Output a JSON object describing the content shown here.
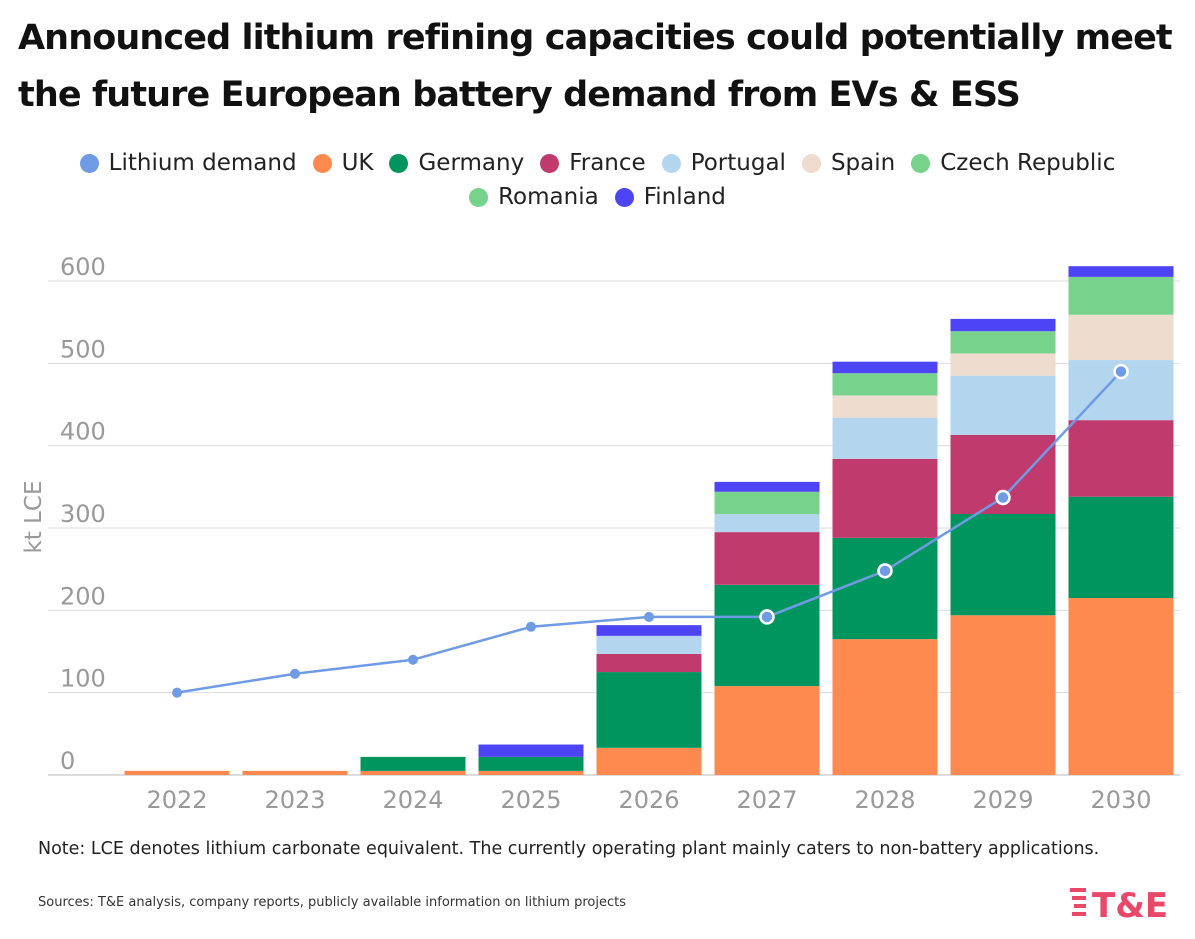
{
  "title_lines": [
    "Announced lithium refining capacities could potentially meet",
    "the future European battery demand from EVs & ESS"
  ],
  "note": "Note: LCE denotes lithium carbonate equivalent. The currently operating plant mainly caters to non-battery applications.",
  "sources": "Sources: T&E analysis, company reports, publicly available information on lithium projects",
  "logo_text": "T&E",
  "colors": {
    "logo": "#e8496b",
    "grid": "#dddddd",
    "axis_text": "#999999",
    "demand_line": "#6f9be5"
  },
  "chart_data": {
    "type": "bar",
    "stacked": true,
    "title": "Announced lithium refining capacities could potentially meet the future European battery demand from EVs & ESS",
    "xlabel": "",
    "ylabel": "kt LCE",
    "ylim": [
      0,
      600
    ],
    "yticks": [
      0,
      100,
      200,
      300,
      400,
      500,
      600
    ],
    "grid": true,
    "legend_position": "top-center",
    "categories": [
      "2022",
      "2023",
      "2024",
      "2025",
      "2026",
      "2027",
      "2028",
      "2029",
      "2030"
    ],
    "legend": [
      {
        "name": "Lithium demand",
        "color": "#6f9be5"
      },
      {
        "name": "UK",
        "color": "#ff8a50"
      },
      {
        "name": "Germany",
        "color": "#00955f"
      },
      {
        "name": "France",
        "color": "#c03a6d"
      },
      {
        "name": "Portugal",
        "color": "#b3d6ee"
      },
      {
        "name": "Spain",
        "color": "#eedcce"
      },
      {
        "name": "Czech Republic",
        "color": "#77d28b"
      },
      {
        "name": "Romania",
        "color": "#77d28b"
      },
      {
        "name": "Finland",
        "color": "#4c44f5"
      }
    ],
    "series": [
      {
        "name": "UK",
        "color": "#ff8a50",
        "values": [
          5,
          5,
          5,
          5,
          33,
          108,
          165,
          194,
          215
        ]
      },
      {
        "name": "Germany",
        "color": "#00955f",
        "values": [
          0,
          0,
          17,
          17,
          92,
          123,
          123,
          123,
          123
        ]
      },
      {
        "name": "France",
        "color": "#c03a6d",
        "values": [
          0,
          0,
          0,
          0,
          22,
          64,
          96,
          96,
          93
        ]
      },
      {
        "name": "Portugal",
        "color": "#b3d6ee",
        "values": [
          0,
          0,
          0,
          0,
          22,
          22,
          50,
          72,
          73
        ]
      },
      {
        "name": "Spain",
        "color": "#eedcce",
        "values": [
          0,
          0,
          0,
          0,
          0,
          0,
          27,
          27,
          55
        ]
      },
      {
        "name": "Czech Republic",
        "color": "#77d28b",
        "values": [
          0,
          0,
          0,
          0,
          0,
          27,
          27,
          27,
          46
        ]
      },
      {
        "name": "Romania",
        "color": "#77d28b",
        "values": [
          0,
          0,
          0,
          0,
          0,
          0,
          0,
          0,
          0
        ]
      },
      {
        "name": "Finland",
        "color": "#4c44f5",
        "values": [
          0,
          0,
          0,
          15,
          13,
          12,
          14,
          15,
          13
        ]
      }
    ],
    "line_series": {
      "name": "Lithium demand",
      "color": "#6f9be5",
      "values": [
        100,
        123,
        140,
        180,
        192,
        192,
        248,
        337,
        490
      ]
    }
  }
}
